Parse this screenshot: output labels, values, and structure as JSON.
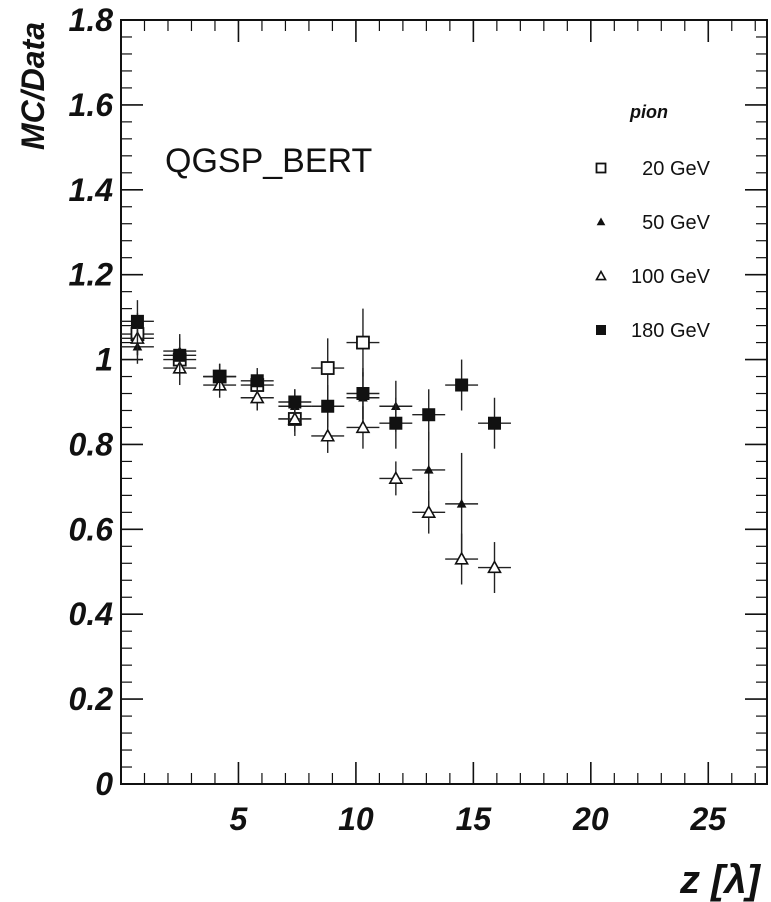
{
  "chart_data": {
    "type": "scatter",
    "annotation": "QGSP_BERT",
    "xlabel": "z [λ]",
    "ylabel": "MC/Data",
    "xlim": [
      0,
      27.5
    ],
    "ylim": [
      0,
      1.8
    ],
    "x_ticks": [
      5,
      10,
      15,
      20,
      25
    ],
    "y_ticks": [
      0,
      0.2,
      0.4,
      0.6,
      0.8,
      1,
      1.2,
      1.4,
      1.6,
      1.8
    ],
    "y_tick_labels": [
      "0",
      "0.2",
      "0.4",
      "0.6",
      "0.8",
      "1",
      "1.2",
      "1.4",
      "1.6",
      "1.8"
    ],
    "x_tick_labels": [
      "5",
      "10",
      "15",
      "20",
      "25"
    ],
    "grid": false,
    "legend_title": "pion",
    "legend_position": "top-right",
    "x_half_width": 0.7,
    "series": [
      {
        "name": "20 GeV",
        "marker": "open-square",
        "x": [
          0.7,
          2.5,
          4.2,
          5.8,
          7.4,
          8.8,
          10.3
        ],
        "y": [
          1.06,
          1.0,
          0.96,
          0.94,
          0.86,
          0.98,
          1.04
        ],
        "yerr": [
          0.05,
          0.04,
          0.03,
          0.03,
          0.04,
          0.07,
          0.08
        ]
      },
      {
        "name": "50 GeV",
        "marker": "filled-triangle",
        "x": [
          0.7,
          2.5,
          4.2,
          5.8,
          7.4,
          8.8,
          10.3,
          11.7,
          13.1,
          14.5
        ],
        "y": [
          1.03,
          1.02,
          0.96,
          0.91,
          0.89,
          0.89,
          0.91,
          0.89,
          0.74,
          0.66
        ],
        "yerr": [
          0.04,
          0.04,
          0.03,
          0.03,
          0.04,
          0.05,
          0.06,
          0.06,
          0.09,
          0.12
        ]
      },
      {
        "name": "100 GeV",
        "marker": "open-triangle",
        "x": [
          0.7,
          2.5,
          4.2,
          5.8,
          7.4,
          8.8,
          10.3,
          11.7,
          13.1,
          14.5,
          15.9
        ],
        "y": [
          1.05,
          0.98,
          0.94,
          0.91,
          0.86,
          0.82,
          0.84,
          0.72,
          0.64,
          0.53,
          0.51
        ],
        "yerr": [
          0.04,
          0.04,
          0.03,
          0.03,
          0.03,
          0.04,
          0.05,
          0.04,
          0.05,
          0.06,
          0.06
        ]
      },
      {
        "name": "180 GeV",
        "marker": "filled-square",
        "x": [
          0.7,
          2.5,
          4.2,
          5.8,
          7.4,
          8.8,
          10.3,
          11.7,
          13.1,
          14.5,
          15.9
        ],
        "y": [
          1.09,
          1.01,
          0.96,
          0.95,
          0.9,
          0.89,
          0.92,
          0.85,
          0.87,
          0.94,
          0.85
        ],
        "yerr": [
          0.05,
          0.04,
          0.03,
          0.03,
          0.03,
          0.05,
          0.06,
          0.06,
          0.06,
          0.06,
          0.06
        ]
      }
    ]
  }
}
